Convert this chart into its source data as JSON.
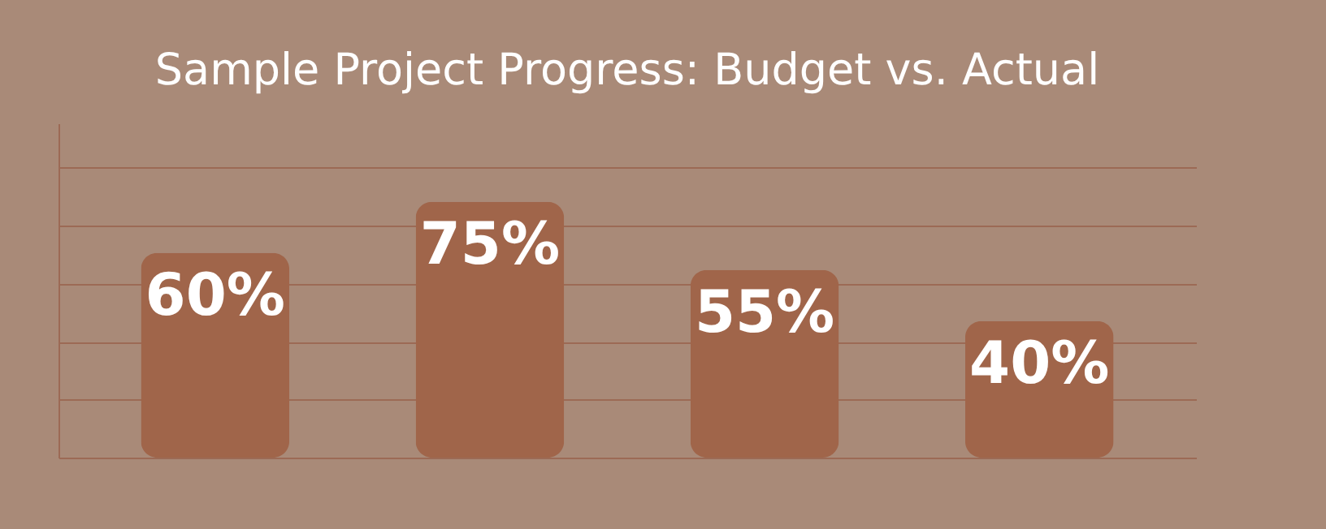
{
  "chart_data": {
    "type": "bar",
    "title": "Sample Project Progress: Budget vs. Actual",
    "categories": [
      null,
      null,
      null,
      null
    ],
    "values": [
      60,
      75,
      55,
      40
    ],
    "value_labels": [
      "60%",
      "75%",
      "55%",
      "40%"
    ],
    "color": "#a0654a",
    "ylim": [
      0,
      98
    ],
    "yticks": [
      {
        "value": 0,
        "label": null
      },
      {
        "value": 17,
        "label": null
      },
      {
        "value": 34,
        "label": null
      },
      {
        "value": 51,
        "label": null
      },
      {
        "value": 68,
        "label": null
      },
      {
        "value": 85,
        "label": null
      }
    ],
    "grid": "y",
    "tick_labels": false
  }
}
